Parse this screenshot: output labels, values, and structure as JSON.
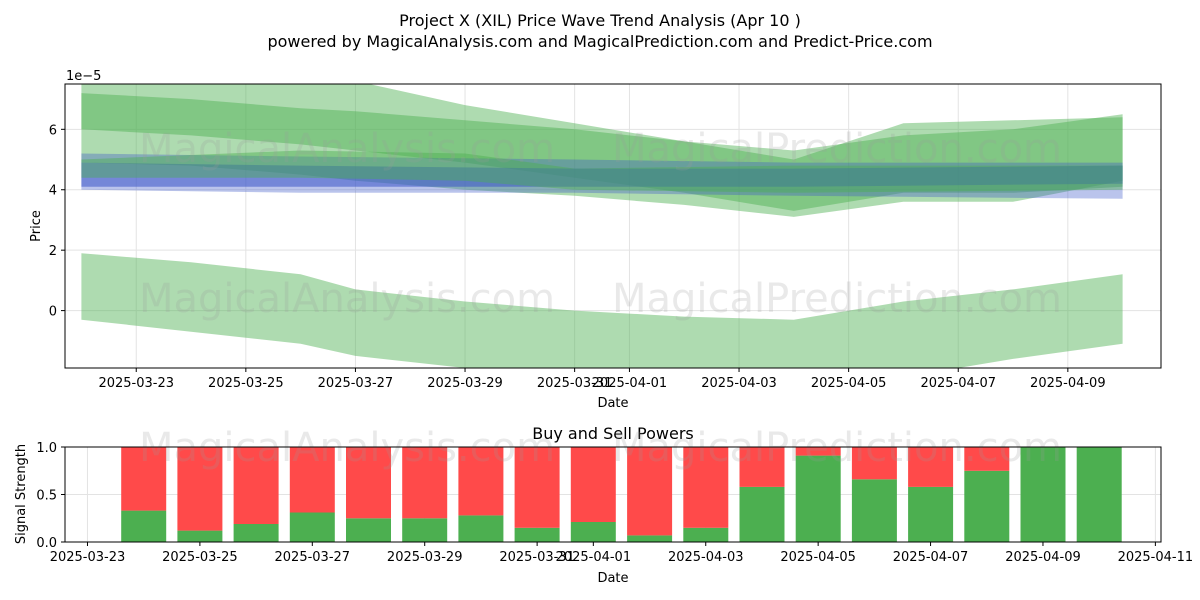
{
  "title": "Project X (XIL) Price Wave Trend Analysis (Apr 10 )",
  "subtitle": "powered by MagicalAnalysis.com and MagicalPrediction.com and Predict-Price.com",
  "watermarks": [
    "MagicalAnalysis.com",
    "MagicalPrediction.com"
  ],
  "colors": {
    "green_band": "#4caf50",
    "blue_band": "#3a56c8",
    "buy": "#4caf50",
    "sell": "#ff4a4a",
    "grid": "#e3e3e3"
  },
  "chart_data": [
    {
      "type": "area",
      "xlabel": "Date",
      "ylabel": "Price",
      "y_multiplier_label": "1e−5",
      "xlim": [
        "2025-03-22",
        "2025-04-10"
      ],
      "ylim": [
        -1.9,
        7.5
      ],
      "yticks": [
        0,
        2,
        4,
        6
      ],
      "xtick_labels": [
        "2025-03-23",
        "2025-03-25",
        "2025-03-27",
        "2025-03-29",
        "2025-03-31",
        "2025-04-01",
        "2025-04-03",
        "2025-04-05",
        "2025-04-07",
        "2025-04-09"
      ],
      "grid": true,
      "series": [
        {
          "color": "green",
          "opacity": 0.45,
          "x": [
            "2025-03-22",
            "2025-03-24",
            "2025-03-26",
            "2025-03-27",
            "2025-03-29",
            "2025-03-31",
            "2025-04-02",
            "2025-04-04",
            "2025-04-06",
            "2025-04-08",
            "2025-04-10"
          ],
          "upper": [
            8.6,
            8.4,
            8.1,
            7.6,
            6.8,
            6.2,
            5.6,
            5.0,
            6.2,
            6.3,
            6.4
          ],
          "lower": [
            4.9,
            4.8,
            4.5,
            4.3,
            4.0,
            3.8,
            3.5,
            3.1,
            3.6,
            3.6,
            4.3
          ]
        },
        {
          "color": "green",
          "opacity": 0.45,
          "x": [
            "2025-03-22",
            "2025-03-24",
            "2025-03-26",
            "2025-03-27",
            "2025-03-29",
            "2025-03-31",
            "2025-04-02",
            "2025-04-04",
            "2025-04-06",
            "2025-04-08",
            "2025-04-10"
          ],
          "upper": [
            7.2,
            7.0,
            6.7,
            6.6,
            6.3,
            6.0,
            5.6,
            5.3,
            5.8,
            6.0,
            6.5
          ],
          "lower": [
            6.0,
            5.8,
            5.5,
            5.3,
            4.9,
            4.4,
            3.9,
            3.3,
            3.9,
            3.9,
            4.1
          ]
        },
        {
          "color": "green",
          "opacity": 0.45,
          "x": [
            "2025-03-22",
            "2025-03-24",
            "2025-03-26",
            "2025-03-27",
            "2025-03-29",
            "2025-03-31",
            "2025-04-02",
            "2025-04-04",
            "2025-04-06",
            "2025-04-08",
            "2025-04-10"
          ],
          "upper": [
            1.9,
            1.6,
            1.2,
            0.7,
            0.3,
            0.0,
            -0.2,
            -0.3,
            0.3,
            0.7,
            1.2
          ],
          "lower": [
            -0.3,
            -0.7,
            -1.1,
            -1.5,
            -1.9,
            -2.2,
            -2.4,
            -2.4,
            -2.2,
            -1.6,
            -1.1
          ]
        },
        {
          "color": "blue",
          "opacity": 0.35,
          "x": [
            "2025-03-22",
            "2025-03-26",
            "2025-03-31",
            "2025-04-04",
            "2025-04-10"
          ],
          "upper": [
            5.2,
            5.1,
            5.0,
            4.9,
            4.9
          ],
          "lower": [
            4.0,
            3.9,
            3.9,
            3.8,
            3.7
          ]
        },
        {
          "color": "blue",
          "opacity": 0.55,
          "x": [
            "2025-03-22",
            "2025-03-26",
            "2025-03-31",
            "2025-04-04",
            "2025-04-10"
          ],
          "upper": [
            4.9,
            4.8,
            4.7,
            4.7,
            4.8
          ],
          "lower": [
            4.1,
            4.1,
            4.1,
            4.1,
            4.2
          ]
        },
        {
          "color": "green",
          "opacity": 0.45,
          "x": [
            "2025-03-22",
            "2025-03-26",
            "2025-03-29",
            "2025-03-31",
            "2025-04-04",
            "2025-04-10"
          ],
          "upper": [
            5.0,
            5.3,
            5.2,
            4.7,
            4.8,
            4.8
          ],
          "lower": [
            4.4,
            4.4,
            4.3,
            4.0,
            3.9,
            4.0
          ]
        }
      ]
    },
    {
      "type": "bar",
      "title": "Buy and Sell Powers",
      "xlabel": "Date",
      "ylabel": "Signal Strength",
      "xlim": [
        "2025-03-23",
        "2025-04-11"
      ],
      "ylim": [
        0,
        1
      ],
      "yticks": [
        "0.0",
        "0.5",
        "1.0"
      ],
      "xtick_labels": [
        "2025-03-23",
        "2025-03-25",
        "2025-03-27",
        "2025-03-29",
        "2025-03-31",
        "2025-04-01",
        "2025-04-03",
        "2025-04-05",
        "2025-04-07",
        "2025-04-09",
        "2025-04-11"
      ],
      "grid": true,
      "categories": [
        "2025-03-24",
        "2025-03-25",
        "2025-03-26",
        "2025-03-27",
        "2025-03-28",
        "2025-03-29",
        "2025-03-30",
        "2025-03-31",
        "2025-04-01",
        "2025-04-02",
        "2025-04-03",
        "2025-04-04",
        "2025-04-05",
        "2025-04-06",
        "2025-04-07",
        "2025-04-08",
        "2025-04-09",
        "2025-04-10"
      ],
      "series": [
        {
          "color": "buy",
          "values": [
            0.33,
            0.12,
            0.19,
            0.31,
            0.25,
            0.25,
            0.28,
            0.15,
            0.21,
            0.07,
            0.15,
            0.58,
            0.91,
            0.66,
            0.58,
            0.75,
            1.0,
            1.0
          ]
        },
        {
          "color": "sell",
          "values": [
            0.67,
            0.88,
            0.81,
            0.69,
            0.75,
            0.75,
            0.72,
            0.85,
            0.79,
            0.93,
            0.85,
            0.42,
            0.09,
            0.34,
            0.42,
            0.25,
            0.0,
            0.0
          ]
        }
      ]
    }
  ]
}
